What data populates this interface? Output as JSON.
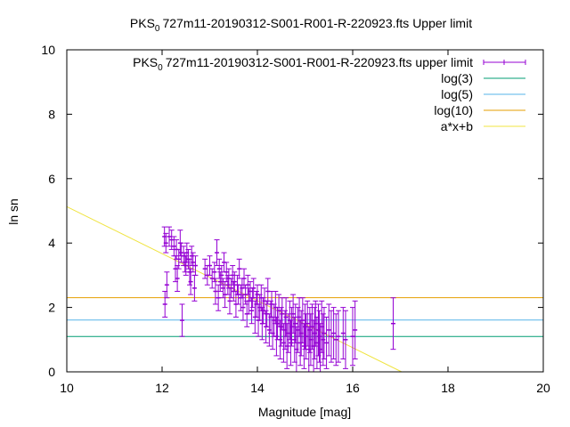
{
  "chart_data": {
    "type": "scatter",
    "title_parts": {
      "pre": "PKS",
      "sub": "0",
      "post": "727m11-20190312-S001-R001-R-220923.fts Upper limit"
    },
    "xlabel": "Magnitude [mag]",
    "ylabel": "ln sn",
    "xlim": [
      10,
      20
    ],
    "ylim": [
      0,
      10
    ],
    "x_ticks": [
      "10",
      "12",
      "14",
      "16",
      "18",
      "20"
    ],
    "y_ticks": [
      "0",
      "2",
      "4",
      "6",
      "8",
      "10"
    ],
    "legend_position": "top-right",
    "legend": [
      {
        "pre": "PKS",
        "sub": "0",
        "post": "727m11-20190312-S001-R001-R-220923.fts upper limit",
        "kind": "errorbar",
        "color": "#9400d3"
      },
      {
        "label": "log(3)",
        "kind": "line",
        "color": "#009e73"
      },
      {
        "label": "log(5)",
        "kind": "line",
        "color": "#56b4e9"
      },
      {
        "label": "log(10)",
        "kind": "line",
        "color": "#e69f00"
      },
      {
        "label": "a*x+b",
        "kind": "line",
        "color": "#f0e442"
      }
    ],
    "hlines": [
      {
        "name": "log(3)",
        "y": 1.0986,
        "color": "#009e73"
      },
      {
        "name": "log(5)",
        "y": 1.6094,
        "color": "#56b4e9"
      },
      {
        "name": "log(10)",
        "y": 2.3026,
        "color": "#e69f00"
      }
    ],
    "fit_line": {
      "name": "a*x+b",
      "a": -0.73,
      "b": 12.43,
      "color": "#f0e442"
    },
    "series": [
      {
        "name": "PKS 0727m11-20190312-S001-R001-R-220923.fts upper limit",
        "color": "#9400d3",
        "points": [
          [
            12.05,
            4.2,
            0.3
          ],
          [
            12.08,
            4.0,
            0.3
          ],
          [
            12.06,
            2.1,
            0.4
          ],
          [
            12.1,
            2.7,
            0.4
          ],
          [
            12.15,
            4.2,
            0.3
          ],
          [
            12.2,
            4.1,
            0.3
          ],
          [
            12.25,
            3.9,
            0.3
          ],
          [
            12.28,
            3.2,
            0.4
          ],
          [
            12.3,
            3.8,
            0.3
          ],
          [
            12.32,
            2.9,
            0.4
          ],
          [
            12.35,
            3.5,
            0.3
          ],
          [
            12.38,
            4.0,
            0.4
          ],
          [
            12.4,
            3.7,
            0.3
          ],
          [
            12.42,
            1.6,
            0.5
          ],
          [
            12.45,
            3.6,
            0.3
          ],
          [
            12.48,
            3.4,
            0.3
          ],
          [
            12.5,
            3.3,
            0.3
          ],
          [
            12.52,
            3.7,
            0.3
          ],
          [
            12.55,
            3.5,
            0.3
          ],
          [
            12.58,
            3.1,
            0.4
          ],
          [
            12.6,
            2.8,
            0.4
          ],
          [
            12.62,
            3.6,
            0.3
          ],
          [
            12.65,
            3.4,
            0.3
          ],
          [
            12.68,
            2.6,
            0.4
          ],
          [
            12.7,
            3.3,
            0.3
          ],
          [
            12.9,
            3.2,
            0.3
          ],
          [
            12.95,
            3.0,
            0.3
          ],
          [
            13.0,
            3.3,
            0.3
          ],
          [
            13.05,
            2.9,
            0.3
          ],
          [
            13.1,
            3.1,
            0.3
          ],
          [
            13.12,
            2.5,
            0.4
          ],
          [
            13.15,
            3.7,
            0.4
          ],
          [
            13.18,
            2.3,
            0.4
          ],
          [
            13.2,
            3.2,
            0.3
          ],
          [
            13.22,
            2.8,
            0.3
          ],
          [
            13.25,
            3.0,
            0.3
          ],
          [
            13.28,
            2.6,
            0.3
          ],
          [
            13.3,
            3.4,
            0.3
          ],
          [
            13.32,
            2.4,
            0.4
          ],
          [
            13.35,
            3.1,
            0.3
          ],
          [
            13.38,
            2.7,
            0.3
          ],
          [
            13.4,
            2.9,
            0.3
          ],
          [
            13.42,
            2.2,
            0.4
          ],
          [
            13.45,
            2.6,
            0.3
          ],
          [
            13.48,
            3.0,
            0.3
          ],
          [
            13.5,
            2.5,
            0.3
          ],
          [
            13.52,
            2.8,
            0.3
          ],
          [
            13.55,
            2.1,
            0.4
          ],
          [
            13.58,
            2.7,
            0.3
          ],
          [
            13.6,
            2.4,
            0.3
          ],
          [
            13.62,
            3.2,
            0.3
          ],
          [
            13.65,
            2.3,
            0.4
          ],
          [
            13.68,
            2.6,
            0.3
          ],
          [
            13.7,
            2.0,
            0.4
          ],
          [
            13.72,
            2.9,
            0.3
          ],
          [
            13.75,
            2.4,
            0.3
          ],
          [
            13.78,
            1.8,
            0.4
          ],
          [
            13.8,
            2.7,
            0.3
          ],
          [
            13.82,
            2.2,
            0.4
          ],
          [
            13.85,
            2.5,
            0.3
          ],
          [
            13.88,
            1.9,
            0.4
          ],
          [
            13.9,
            2.3,
            0.3
          ],
          [
            13.92,
            2.6,
            0.3
          ],
          [
            13.95,
            1.7,
            0.5
          ],
          [
            13.98,
            2.1,
            0.4
          ],
          [
            14.0,
            2.4,
            0.3
          ],
          [
            14.02,
            1.6,
            0.5
          ],
          [
            14.05,
            2.0,
            0.4
          ],
          [
            14.08,
            2.3,
            0.4
          ],
          [
            14.1,
            1.5,
            0.5
          ],
          [
            14.12,
            1.9,
            0.4
          ],
          [
            14.15,
            2.2,
            0.4
          ],
          [
            14.18,
            1.4,
            0.5
          ],
          [
            14.2,
            1.8,
            0.4
          ],
          [
            14.22,
            2.5,
            0.4
          ],
          [
            14.25,
            1.3,
            0.5
          ],
          [
            14.28,
            1.7,
            0.5
          ],
          [
            14.3,
            2.1,
            0.4
          ],
          [
            14.32,
            1.2,
            0.5
          ],
          [
            14.35,
            1.6,
            0.5
          ],
          [
            14.38,
            2.0,
            0.5
          ],
          [
            14.4,
            1.1,
            0.6
          ],
          [
            14.42,
            1.5,
            0.5
          ],
          [
            14.45,
            1.9,
            0.5
          ],
          [
            14.48,
            1.0,
            0.6
          ],
          [
            14.5,
            1.4,
            0.6
          ],
          [
            14.52,
            1.8,
            0.5
          ],
          [
            14.55,
            0.9,
            0.6
          ],
          [
            14.58,
            1.3,
            0.6
          ],
          [
            14.6,
            1.7,
            0.6
          ],
          [
            14.62,
            0.8,
            0.7
          ],
          [
            14.65,
            1.2,
            0.6
          ],
          [
            14.68,
            1.6,
            0.6
          ],
          [
            14.7,
            0.9,
            0.7
          ],
          [
            14.72,
            1.4,
            0.6
          ],
          [
            14.75,
            1.8,
            0.6
          ],
          [
            14.78,
            1.0,
            0.7
          ],
          [
            14.8,
            1.5,
            0.6
          ],
          [
            14.82,
            0.7,
            0.7
          ],
          [
            14.85,
            1.3,
            0.7
          ],
          [
            14.88,
            1.7,
            0.6
          ],
          [
            14.9,
            0.9,
            0.7
          ],
          [
            14.92,
            1.2,
            0.7
          ],
          [
            14.95,
            1.6,
            0.7
          ],
          [
            14.98,
            0.8,
            0.7
          ],
          [
            15.0,
            1.4,
            0.7
          ],
          [
            15.02,
            1.1,
            0.7
          ],
          [
            15.05,
            1.5,
            0.7
          ],
          [
            15.08,
            0.7,
            0.7
          ],
          [
            15.1,
            1.3,
            0.7
          ],
          [
            15.12,
            1.0,
            0.8
          ],
          [
            15.15,
            1.4,
            0.7
          ],
          [
            15.18,
            0.8,
            0.8
          ],
          [
            15.2,
            1.2,
            0.8
          ],
          [
            15.22,
            1.5,
            0.7
          ],
          [
            15.25,
            0.9,
            0.8
          ],
          [
            15.28,
            1.3,
            0.8
          ],
          [
            15.3,
            1.1,
            0.8
          ],
          [
            15.32,
            0.7,
            0.8
          ],
          [
            15.35,
            1.4,
            0.8
          ],
          [
            15.38,
            1.0,
            0.8
          ],
          [
            15.4,
            1.2,
            0.8
          ],
          [
            15.45,
            0.9,
            0.8
          ],
          [
            15.5,
            1.3,
            0.8
          ],
          [
            15.55,
            1.1,
            0.8
          ],
          [
            15.6,
            1.2,
            0.8
          ],
          [
            15.65,
            1.0,
            0.8
          ],
          [
            15.7,
            1.1,
            0.8
          ],
          [
            15.8,
            1.2,
            0.8
          ],
          [
            15.85,
            1.0,
            0.9
          ],
          [
            16.0,
            1.1,
            0.9
          ],
          [
            16.05,
            1.3,
            0.9
          ],
          [
            16.85,
            1.5,
            0.8
          ]
        ]
      }
    ]
  }
}
